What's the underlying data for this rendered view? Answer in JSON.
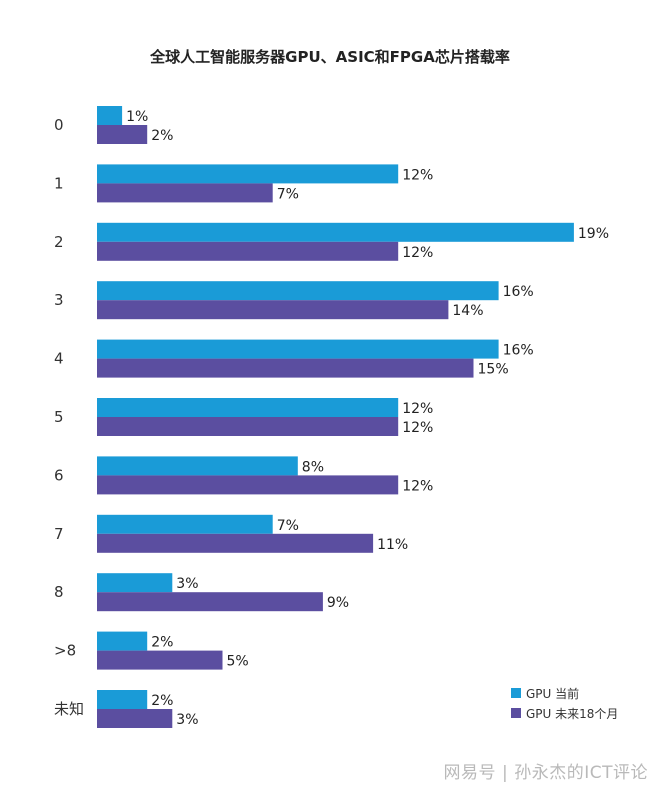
{
  "chart_data": {
    "type": "bar",
    "orientation": "horizontal",
    "title": "全球人工智能服务器GPU、ASIC和FPGA芯片搭载率",
    "categories": [
      "0",
      "1",
      "2",
      "3",
      "4",
      "5",
      "6",
      "7",
      "8",
      ">8",
      "未知"
    ],
    "series": [
      {
        "name": "GPU 当前",
        "color": "#1a9bd7",
        "values": [
          1,
          12,
          19,
          16,
          16,
          12,
          8,
          7,
          3,
          2,
          2
        ]
      },
      {
        "name": "GPU 未来18个月",
        "color": "#5b4ea0",
        "values": [
          2,
          7,
          12,
          14,
          15,
          12,
          12,
          11,
          9,
          5,
          3
        ]
      }
    ],
    "value_suffix": "%",
    "legend_position": "bottom-right",
    "grid": false
  },
  "watermark": {
    "source": "网易号",
    "separator": "|",
    "author": "孙永杰的ICT评论"
  }
}
